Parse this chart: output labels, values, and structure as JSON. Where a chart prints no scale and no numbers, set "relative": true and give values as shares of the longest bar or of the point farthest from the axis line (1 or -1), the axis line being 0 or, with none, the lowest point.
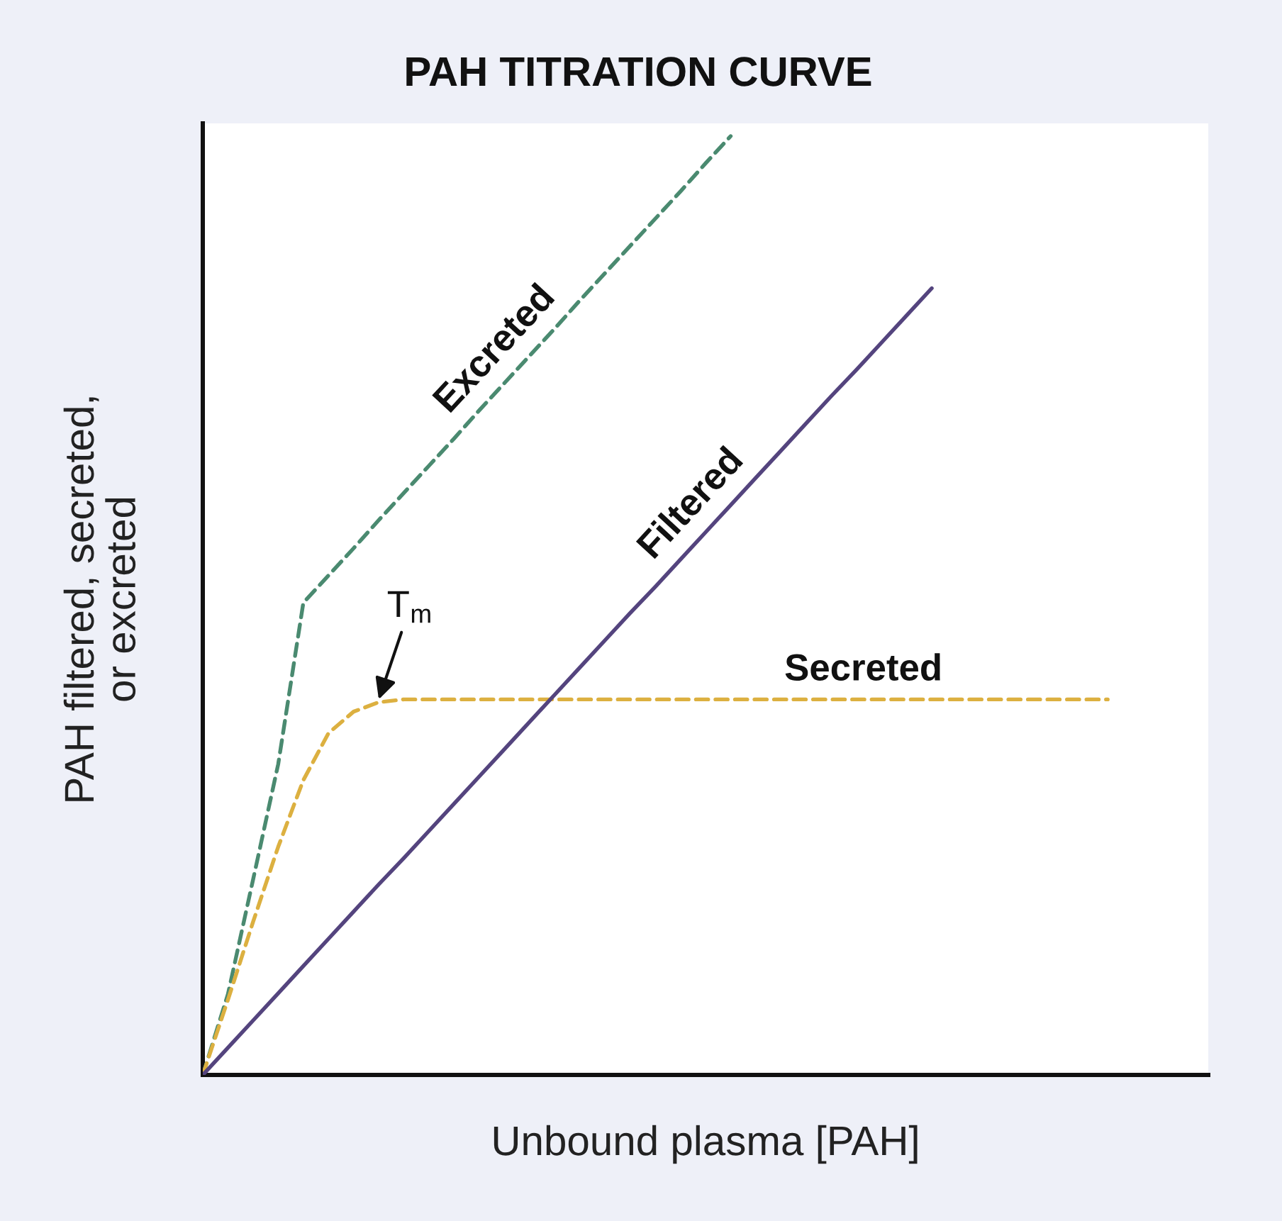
{
  "chart_data": {
    "type": "line",
    "title": "PAH TITRATION CURVE",
    "xlabel": "Unbound plasma [PAH]",
    "ylabel": "PAH filtered, secreted,\nor excreted",
    "relative": true,
    "categories": [
      null,
      null,
      null,
      null,
      null,
      null,
      null,
      null,
      null,
      null,
      null,
      null,
      null,
      null,
      null,
      null,
      null,
      null,
      null,
      null,
      null,
      null,
      null,
      null,
      null,
      null,
      null,
      null,
      null,
      null,
      null,
      null,
      null,
      null,
      null,
      null,
      null,
      null,
      null,
      null,
      null
    ],
    "series": [
      {
        "name": "Excreted",
        "color": "#4a8a70",
        "line_style": "dashed",
        "values": [
          0,
          0.086,
          0.208,
          0.331,
          0.503,
          0.532,
          0.561,
          0.591,
          0.62,
          0.649,
          0.678,
          0.708,
          0.737,
          0.766,
          0.795,
          0.825,
          0.854,
          0.883,
          0.912,
          0.941,
          0.971,
          1.0,
          null,
          null,
          null,
          null,
          null,
          null,
          null,
          null,
          null,
          null,
          null,
          null,
          null,
          null,
          null,
          null,
          null,
          null,
          null
        ]
      },
      {
        "name": "Secreted",
        "color": "#dcb040",
        "line_style": "dashed",
        "values": [
          0,
          0.08,
          0.163,
          0.243,
          0.314,
          0.364,
          0.387,
          0.397,
          0.4,
          0.4,
          0.4,
          0.4,
          0.4,
          0.4,
          0.4,
          0.4,
          0.4,
          0.4,
          0.4,
          0.4,
          0.4,
          0.4,
          0.4,
          0.4,
          0.4,
          0.4,
          0.4,
          0.4,
          0.4,
          0.4,
          0.4,
          0.4,
          0.4,
          0.4,
          0.4,
          0.4,
          0.4,
          null,
          null,
          null,
          null
        ]
      },
      {
        "name": "Filtered",
        "color": "#54447e",
        "line_style": "solid",
        "values": [
          0,
          0.029,
          0.058,
          0.087,
          0.116,
          0.145,
          0.174,
          0.203,
          0.231,
          0.26,
          0.289,
          0.318,
          0.347,
          0.376,
          0.405,
          0.434,
          0.463,
          0.492,
          0.52,
          0.549,
          0.578,
          0.607,
          0.636,
          0.665,
          0.694,
          0.723,
          0.751,
          0.78,
          0.809,
          0.838,
          null,
          null,
          null,
          null,
          null,
          null,
          null,
          null,
          null,
          null,
          null
        ]
      }
    ],
    "annotations": [
      {
        "text": "T$_{m}$",
        "y": 0.4
      }
    ]
  }
}
